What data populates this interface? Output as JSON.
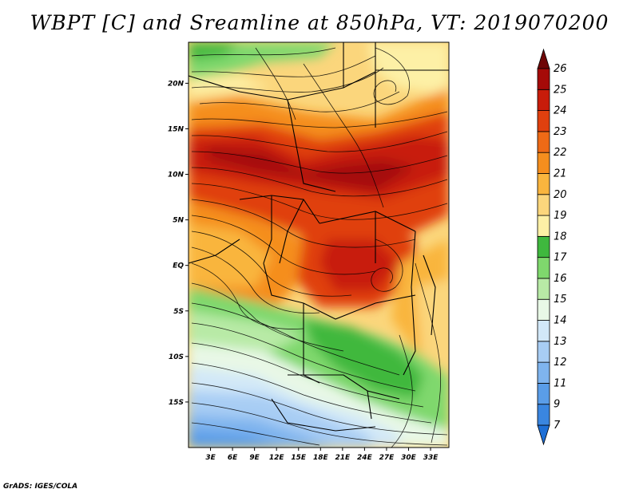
{
  "title": "WBPT [C] and Sreamline at 850hPa, VT: 2019070200",
  "credit": "GrADS: IGES/COLA",
  "map": {
    "lon_range": [
      0,
      35.5
    ],
    "lat_range": [
      -20,
      24.5
    ],
    "x_ticks": [
      {
        "lon": 3,
        "label": "3E"
      },
      {
        "lon": 6,
        "label": "6E"
      },
      {
        "lon": 9,
        "label": "9E"
      },
      {
        "lon": 12,
        "label": "12E"
      },
      {
        "lon": 15,
        "label": "15E"
      },
      {
        "lon": 18,
        "label": "18E"
      },
      {
        "lon": 21,
        "label": "21E"
      },
      {
        "lon": 24,
        "label": "24E"
      },
      {
        "lon": 27,
        "label": "27E"
      },
      {
        "lon": 30,
        "label": "30E"
      },
      {
        "lon": 33,
        "label": "33E"
      }
    ],
    "y_ticks": [
      {
        "lat": 20,
        "label": "20N"
      },
      {
        "lat": 15,
        "label": "15N"
      },
      {
        "lat": 10,
        "label": "10N"
      },
      {
        "lat": 5,
        "label": "5N"
      },
      {
        "lat": 0,
        "label": "EQ"
      },
      {
        "lat": -5,
        "label": "5S"
      },
      {
        "lat": -10,
        "label": "10S"
      },
      {
        "lat": -15,
        "label": "15S"
      }
    ]
  },
  "colorbar": {
    "levels": [
      "7",
      "9",
      "11",
      "12",
      "13",
      "14",
      "15",
      "16",
      "17",
      "18",
      "19",
      "20",
      "21",
      "22",
      "23",
      "24",
      "25",
      "26"
    ],
    "colors": [
      "#1e6fd6",
      "#3a86e0",
      "#5a9de8",
      "#7fb4ee",
      "#a8cdf4",
      "#d2e8f8",
      "#e8f8e6",
      "#b8eaa6",
      "#7fd86d",
      "#3fb83e",
      "#fdf0a6",
      "#fbd67c",
      "#f9b53e",
      "#f58e1e",
      "#ee6a16",
      "#e0400e",
      "#c81c0a",
      "#a50a08",
      "#6e0606"
    ]
  }
}
